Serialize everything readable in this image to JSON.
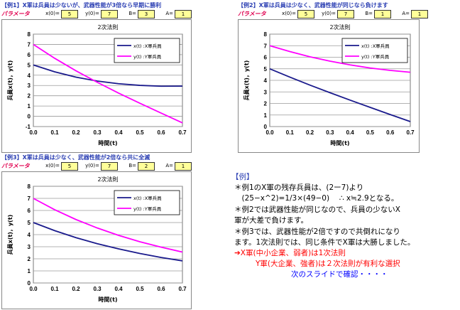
{
  "examples": [
    {
      "title": "【例1】X軍は兵員は少ないが、武器性能が3倍なら早期に勝利",
      "param_label": "パラメータ",
      "params": [
        {
          "name": "x(0)=",
          "value": "5"
        },
        {
          "name": "y(0)=",
          "value": "7"
        },
        {
          "name": "B=",
          "value": "3"
        },
        {
          "name": "A=",
          "value": "1"
        }
      ]
    },
    {
      "title": "【例2】X軍は兵員は少なく、武器性能が同じなら負けます",
      "param_label": "パラメータ",
      "params": [
        {
          "name": "x(0)=",
          "value": "5"
        },
        {
          "name": "y(0)=",
          "value": "7"
        },
        {
          "name": "B=",
          "value": "1"
        },
        {
          "name": "A=",
          "value": "1"
        }
      ]
    },
    {
      "title": "【例3】X軍は兵員は少なく、武器性能が2倍なら共に全滅",
      "param_label": "パラメータ",
      "params": [
        {
          "name": "x(0)=",
          "value": "5"
        },
        {
          "name": "y(0)=",
          "value": "7"
        },
        {
          "name": "B=",
          "value": "2"
        },
        {
          "name": "A=",
          "value": "1"
        }
      ]
    }
  ],
  "chart_data": [
    {
      "type": "line",
      "title": "2次法則",
      "xlabel": "時間(t)",
      "ylabel": "兵員x(t)，y(t)",
      "xlim": [
        0,
        0.7
      ],
      "ylim": [
        -1,
        8
      ],
      "xticks": [
        "0.0",
        "0.1",
        "0.2",
        "0.3",
        "0.4",
        "0.5",
        "0.6",
        "0.7"
      ],
      "yticks": [
        "-1",
        "0",
        "1",
        "2",
        "3",
        "4",
        "5",
        "6",
        "7",
        "8"
      ],
      "legend_position": "top-right",
      "grid": true,
      "x": [
        0,
        0.1,
        0.2,
        0.3,
        0.4,
        0.5,
        0.6,
        0.7
      ],
      "series": [
        {
          "name": "x(t) :X軍兵員",
          "color": "#1a1a8c",
          "values": [
            5.0,
            4.33,
            3.81,
            3.43,
            3.17,
            3.01,
            2.93,
            2.94
          ]
        },
        {
          "name": "y(t) :Y軍兵員",
          "color": "#ff00ff",
          "values": [
            7.0,
            5.65,
            4.43,
            3.31,
            2.26,
            1.27,
            0.31,
            -0.64
          ]
        }
      ]
    },
    {
      "type": "line",
      "title": "2次法則",
      "xlabel": "時間(t)",
      "ylabel": "兵員x(t)，y(t)",
      "xlim": [
        0,
        0.7
      ],
      "ylim": [
        0,
        8
      ],
      "xticks": [
        "0.0",
        "0.1",
        "0.2",
        "0.3",
        "0.4",
        "0.5",
        "0.6",
        "0.7"
      ],
      "yticks": [
        "0",
        "1",
        "2",
        "3",
        "4",
        "5",
        "6",
        "7",
        "8"
      ],
      "legend_position": "top-right",
      "grid": true,
      "x": [
        0,
        0.1,
        0.2,
        0.3,
        0.4,
        0.5,
        0.6,
        0.7
      ],
      "series": [
        {
          "name": "x(t) :X軍兵員",
          "color": "#1a1a8c",
          "values": [
            5.0,
            4.28,
            3.59,
            2.93,
            2.29,
            1.66,
            1.04,
            0.43
          ]
        },
        {
          "name": "y(t) :Y軍兵員",
          "color": "#ff00ff",
          "values": [
            7.0,
            6.49,
            6.04,
            5.66,
            5.34,
            5.07,
            4.86,
            4.7
          ]
        }
      ]
    },
    {
      "type": "line",
      "title": "2次法則",
      "xlabel": "時間(t)",
      "ylabel": "兵員x(t)，y(t)",
      "xlim": [
        0,
        0.7
      ],
      "ylim": [
        0,
        8
      ],
      "xticks": [
        "0.0",
        "0.1",
        "0.2",
        "0.3",
        "0.4",
        "0.5",
        "0.6",
        "0.7"
      ],
      "yticks": [
        "0",
        "1",
        "2",
        "3",
        "4",
        "5",
        "6",
        "7",
        "8"
      ],
      "legend_position": "top-right",
      "grid": true,
      "x": [
        0,
        0.1,
        0.2,
        0.3,
        0.4,
        0.5,
        0.6,
        0.7
      ],
      "series": [
        {
          "name": "x(t) :X軍兵員",
          "color": "#1a1a8c",
          "values": [
            5.0,
            4.33,
            3.75,
            3.25,
            2.82,
            2.44,
            2.11,
            1.83
          ]
        },
        {
          "name": "y(t) :Y軍兵員",
          "color": "#ff00ff",
          "values": [
            7.0,
            6.06,
            5.25,
            4.55,
            3.94,
            3.41,
            2.96,
            2.56
          ]
        }
      ]
    }
  ],
  "notes": {
    "heading": "【例】",
    "lines": [
      {
        "text": "＊例1のX軍の残存兵員は、(2ー7)より",
        "color": "#000000"
      },
      {
        "text": "　(25−x^2)=1/3×(49−0)　  ∴  x≒2.9となる。",
        "color": "#000000"
      },
      {
        "text": "＊例2では武器性能が同じなので、兵員の少ないX",
        "color": "#000000"
      },
      {
        "text": "軍が大差で負けます。",
        "color": "#000000"
      },
      {
        "text": "＊例3では、武器性能が2倍ですので共倒れになり",
        "color": "#000000"
      },
      {
        "text": "ます。1次法則では、同じ条件でX軍は大勝しました。",
        "color": "#000000"
      },
      {
        "text": "➔X軍(中小企業、弱者)は1次法則",
        "color": "#ff0000"
      },
      {
        "text": "Y軍(大企業、強者)は２次法則が有利な選択",
        "color": "#ff0000"
      },
      {
        "text": "次のスライドで確認・・・・",
        "color": "#0000ff"
      }
    ]
  }
}
